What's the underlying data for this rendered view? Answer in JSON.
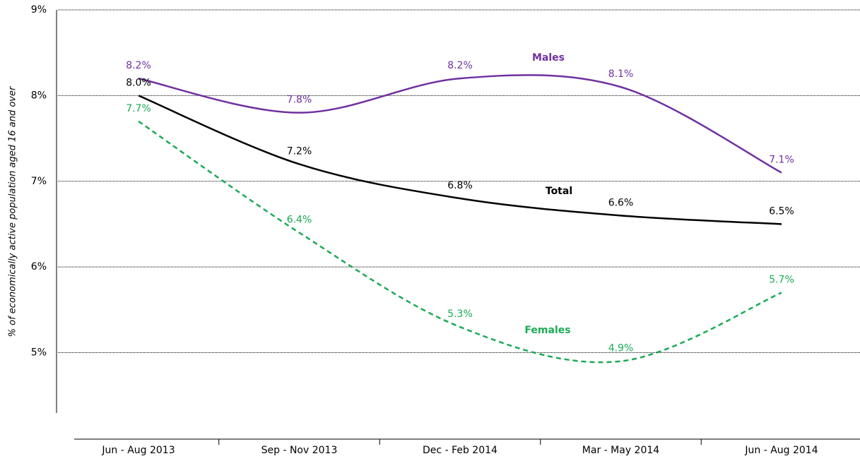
{
  "chart_data": {
    "type": "line",
    "y_label": "% of economically active population aged 16 and over",
    "categories": [
      "Jun - Aug 2013",
      "Sep - Nov 2013",
      "Dec - Feb 2014",
      "Mar - May 2014",
      "Jun - Aug 2014"
    ],
    "series": [
      {
        "name": "Males",
        "color": "#7030a0",
        "dashed": false,
        "values": [
          8.2,
          7.8,
          8.2,
          8.1,
          7.1
        ],
        "value_labels": [
          "8.2%",
          "7.8%",
          "8.2%",
          "8.1%",
          "7.1%"
        ]
      },
      {
        "name": "Total",
        "color": "#000000",
        "dashed": false,
        "values": [
          8.0,
          7.2,
          6.8,
          6.6,
          6.5
        ],
        "value_labels": [
          "8.0%",
          "7.2%",
          "6.8%",
          "6.6%",
          "6.5%"
        ]
      },
      {
        "name": "Females",
        "color": "#1aaa55",
        "dashed": true,
        "values": [
          7.7,
          6.4,
          5.3,
          4.9,
          5.7
        ],
        "value_labels": [
          "7.7%",
          "6.4%",
          "5.3%",
          "4.9%",
          "5.7%"
        ]
      }
    ],
    "ylim": [
      4.3,
      9
    ],
    "yticks": [
      {
        "value": 5,
        "label": "5%"
      },
      {
        "value": 6,
        "label": "6%"
      },
      {
        "value": 7,
        "label": "7%"
      },
      {
        "value": 8,
        "label": "8%"
      },
      {
        "value": 9,
        "label": "9%"
      }
    ],
    "grid": true,
    "smooth": true
  }
}
